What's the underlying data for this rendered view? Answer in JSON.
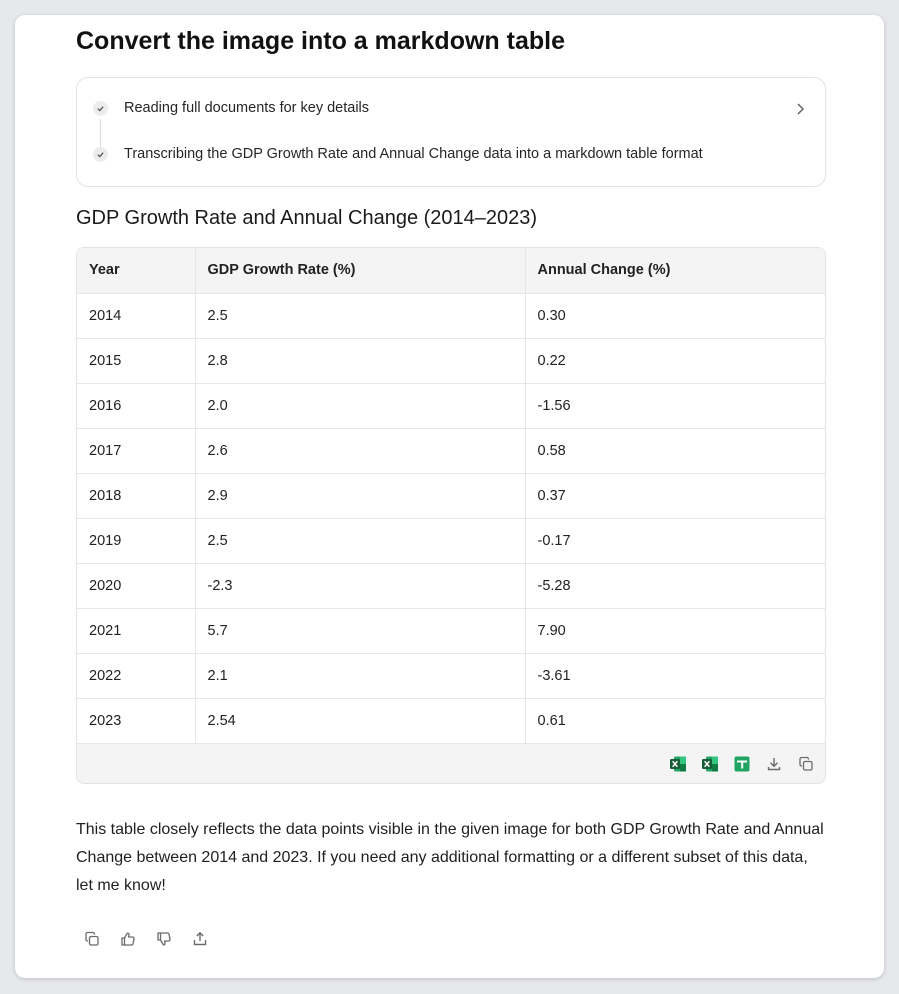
{
  "heading": "Convert the image into a markdown table",
  "steps": [
    {
      "label": "Reading full documents for key details"
    },
    {
      "label": "Transcribing the GDP Growth Rate and Annual Change data into a markdown table format"
    }
  ],
  "table_title": "GDP Growth Rate and Annual Change (2014–2023)",
  "table": {
    "headers": [
      "Year",
      "GDP Growth Rate (%)",
      "Annual Change (%)"
    ],
    "rows": [
      [
        "2014",
        "2.5",
        "0.30"
      ],
      [
        "2015",
        "2.8",
        "0.22"
      ],
      [
        "2016",
        "2.0",
        "-1.56"
      ],
      [
        "2017",
        "2.6",
        "0.58"
      ],
      [
        "2018",
        "2.9",
        "0.37"
      ],
      [
        "2019",
        "2.5",
        "-0.17"
      ],
      [
        "2020",
        "-2.3",
        "-5.28"
      ],
      [
        "2021",
        "5.7",
        "7.90"
      ],
      [
        "2022",
        "2.1",
        "-3.61"
      ],
      [
        "2023",
        "2.54",
        "0.61"
      ]
    ]
  },
  "table_footer_icons": [
    "excel-icon",
    "excel-icon",
    "google-sheets-icon",
    "download-icon",
    "copy-icon"
  ],
  "response_text": "This table closely reflects the data points visible in the given image for both GDP Growth Rate and Annual Change between 2014 and 2023. If you need any additional formatting or a different subset of this data, let me know!",
  "message_actions": [
    "copy-icon",
    "thumbs-up-icon",
    "thumbs-down-icon",
    "share-icon"
  ],
  "colors": {
    "excel_green": "#1d7044",
    "sheets_green": "#1fa463",
    "icon_gray": "#6b6b6b"
  }
}
